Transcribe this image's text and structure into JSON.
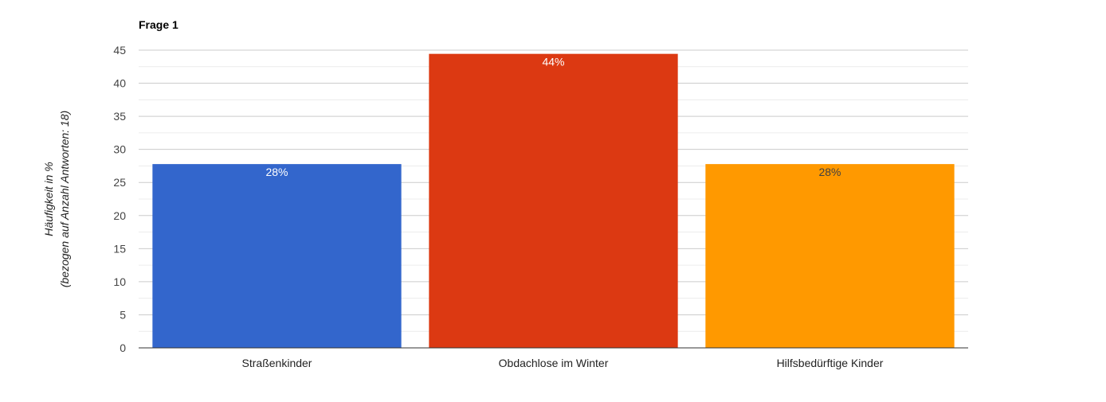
{
  "chart_data": {
    "type": "bar",
    "title": "Frage 1",
    "ylabel_line1": "Häufigkeit in %",
    "ylabel_line2": "(bezogen auf Anzahl Antworten: 18)",
    "ylim": [
      0,
      45
    ],
    "yticks": [
      0,
      5,
      10,
      15,
      20,
      25,
      30,
      35,
      40,
      45
    ],
    "grid": true,
    "categories": [
      "Straßenkinder",
      "Obdachlose im Winter",
      "Hilfsbedürftige Kinder"
    ],
    "values": [
      27.78,
      44.44,
      27.78
    ],
    "data_labels": [
      "28%",
      "44%",
      "28%"
    ],
    "colors": [
      "#3366cc",
      "#dc3912",
      "#ff9900"
    ],
    "label_colors": [
      "#ffffff",
      "#ffffff",
      "#404040"
    ]
  }
}
